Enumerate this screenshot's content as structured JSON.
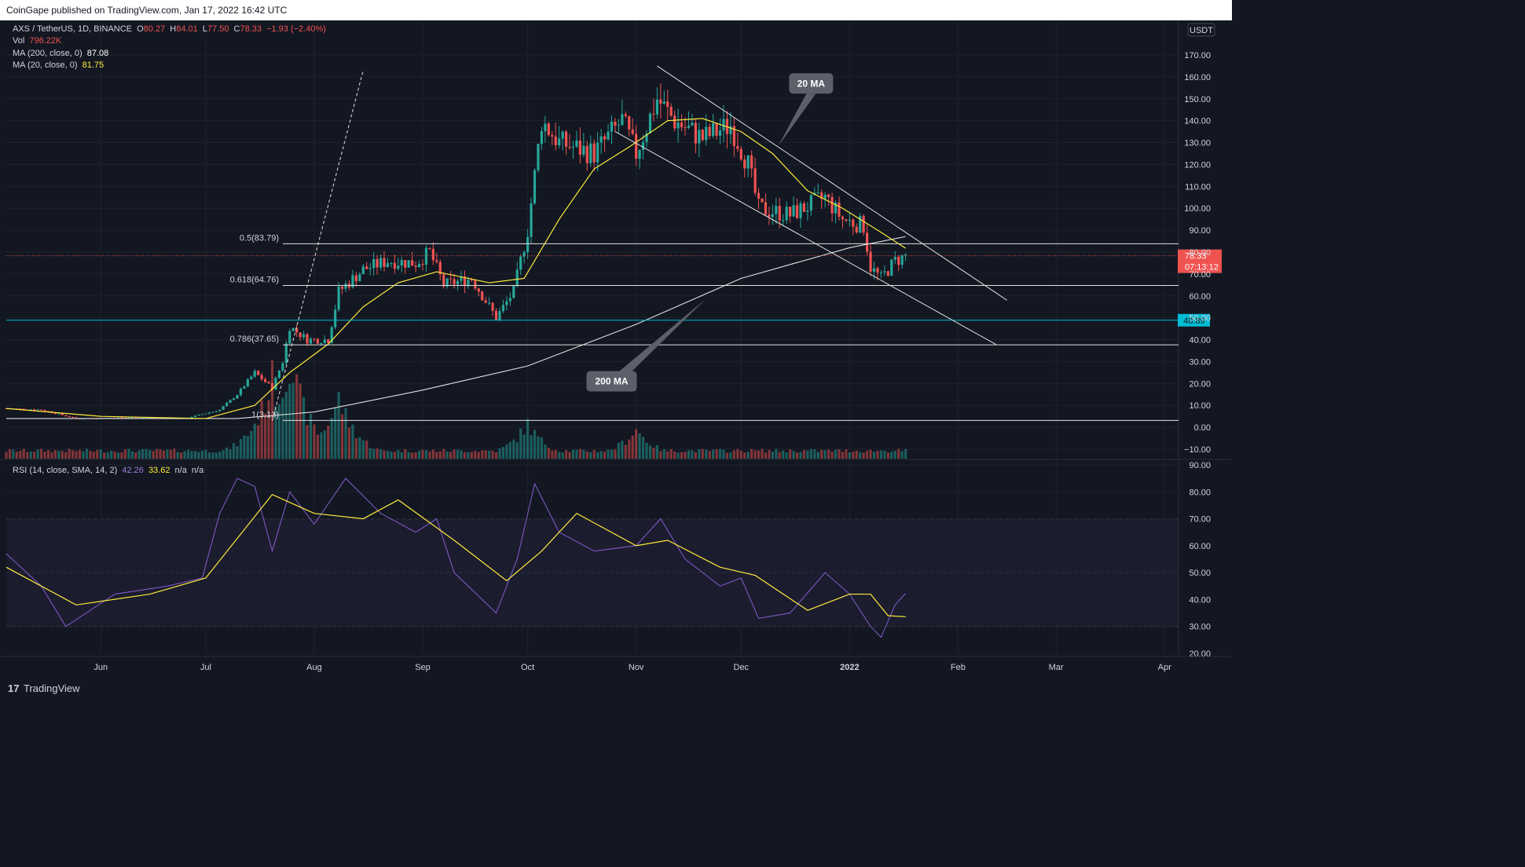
{
  "header": {
    "published": "CoinGape published on TradingView.com, Jan 17, 2022 16:42 UTC"
  },
  "legend": {
    "symbol": "AXS / TetherUS, 1D, BINANCE",
    "open_label": "O",
    "open": "80.27",
    "high_label": "H",
    "high": "84.01",
    "low_label": "L",
    "low": "77.50",
    "close_label": "C",
    "close": "78.33",
    "change": "−1.93 (−2.40%)",
    "vol_label": "Vol",
    "vol": "796.22K",
    "ma200_label": "MA (200, close, 0)",
    "ma200": "87.08",
    "ma20_label": "MA (20, close, 0)",
    "ma20": "81.75"
  },
  "rsi_legend": {
    "label": "RSI (14, close, SMA, 14, 2)",
    "rsi": "42.26",
    "sma": "33.62",
    "na1": "n/a",
    "na2": "n/a"
  },
  "footer": {
    "logo": "17",
    "brand": "TradingView"
  },
  "colors": {
    "bg": "#131722",
    "up": "#26a69a",
    "down": "#ef5350",
    "ma20": "#ffeb3b",
    "ma200": "#e0e0e0",
    "rsi": "#7e57c2",
    "level": "#00bcd4"
  },
  "chart_data": [
    {
      "type": "candlestick",
      "currency_label": "USDT",
      "y_ticks": [
        "170.00",
        "160.00",
        "150.00",
        "140.00",
        "130.00",
        "120.00",
        "110.00",
        "100.00",
        "90.00",
        "80.00",
        "70.00",
        "60.00",
        "50.00",
        "40.00",
        "30.00",
        "20.00",
        "10.00",
        "0.00",
        "−10.00"
      ],
      "y_tick_values": [
        170,
        160,
        150,
        140,
        130,
        120,
        110,
        100,
        90,
        80,
        70,
        60,
        50,
        40,
        30,
        20,
        10,
        0,
        -10
      ],
      "y_range": [
        -12,
        180
      ],
      "x_labels": [
        "Jun",
        "Jul",
        "Aug",
        "Sep",
        "Oct",
        "Nov",
        "Dec",
        "2022",
        "Feb",
        "Mar",
        "Apr"
      ],
      "x_dates": [
        "2021-06-01",
        "2021-07-01",
        "2021-08-01",
        "2021-09-01",
        "2021-10-01",
        "2021-11-01",
        "2021-12-01",
        "2022-01-01",
        "2022-02-01",
        "2022-03-01",
        "2022-04-01"
      ],
      "x_range": [
        "2021-05-05",
        "2022-04-05"
      ],
      "price_series": [
        {
          "date": "2021-05-05",
          "close": 8.6
        },
        {
          "date": "2021-05-15",
          "close": 8
        },
        {
          "date": "2021-05-25",
          "close": 4
        },
        {
          "date": "2021-06-10",
          "close": 4.5
        },
        {
          "date": "2021-06-25",
          "close": 4
        },
        {
          "date": "2021-07-05",
          "close": 8
        },
        {
          "date": "2021-07-10",
          "close": 15
        },
        {
          "date": "2021-07-15",
          "close": 25
        },
        {
          "date": "2021-07-20",
          "close": 18
        },
        {
          "date": "2021-07-23",
          "close": 30
        },
        {
          "date": "2021-07-25",
          "close": 46
        },
        {
          "date": "2021-07-30",
          "close": 40
        },
        {
          "date": "2021-08-05",
          "close": 40
        },
        {
          "date": "2021-08-08",
          "close": 62
        },
        {
          "date": "2021-08-15",
          "close": 72
        },
        {
          "date": "2021-08-22",
          "close": 76
        },
        {
          "date": "2021-08-30",
          "close": 75
        },
        {
          "date": "2021-09-03",
          "close": 80
        },
        {
          "date": "2021-09-07",
          "close": 65
        },
        {
          "date": "2021-09-15",
          "close": 68
        },
        {
          "date": "2021-09-22",
          "close": 50
        },
        {
          "date": "2021-09-27",
          "close": 62
        },
        {
          "date": "2021-10-01",
          "close": 90
        },
        {
          "date": "2021-10-05",
          "close": 140
        },
        {
          "date": "2021-10-10",
          "close": 130
        },
        {
          "date": "2021-10-20",
          "close": 125
        },
        {
          "date": "2021-10-28",
          "close": 140
        },
        {
          "date": "2021-11-01",
          "close": 125
        },
        {
          "date": "2021-11-07",
          "close": 150
        },
        {
          "date": "2021-11-12",
          "close": 140
        },
        {
          "date": "2021-11-20",
          "close": 132
        },
        {
          "date": "2021-11-28",
          "close": 138
        },
        {
          "date": "2021-12-03",
          "close": 120
        },
        {
          "date": "2021-12-06",
          "close": 100
        },
        {
          "date": "2021-12-15",
          "close": 97
        },
        {
          "date": "2021-12-25",
          "close": 105
        },
        {
          "date": "2021-12-30",
          "close": 95
        },
        {
          "date": "2022-01-05",
          "close": 92
        },
        {
          "date": "2022-01-07",
          "close": 73
        },
        {
          "date": "2022-01-10",
          "close": 68
        },
        {
          "date": "2022-01-14",
          "close": 76
        },
        {
          "date": "2022-01-17",
          "close": 78.33
        }
      ],
      "ma20": [
        {
          "date": "2021-05-05",
          "value": 8.6
        },
        {
          "date": "2021-06-01",
          "value": 5
        },
        {
          "date": "2021-07-01",
          "value": 4
        },
        {
          "date": "2021-07-15",
          "value": 10
        },
        {
          "date": "2021-07-25",
          "value": 25
        },
        {
          "date": "2021-08-05",
          "value": 38
        },
        {
          "date": "2021-08-15",
          "value": 55
        },
        {
          "date": "2021-08-25",
          "value": 66
        },
        {
          "date": "2021-09-05",
          "value": 71
        },
        {
          "date": "2021-09-20",
          "value": 66
        },
        {
          "date": "2021-09-30",
          "value": 68
        },
        {
          "date": "2021-10-10",
          "value": 95
        },
        {
          "date": "2021-10-20",
          "value": 118
        },
        {
          "date": "2021-10-30",
          "value": 128
        },
        {
          "date": "2021-11-10",
          "value": 140
        },
        {
          "date": "2021-11-20",
          "value": 141
        },
        {
          "date": "2021-12-01",
          "value": 135
        },
        {
          "date": "2021-12-10",
          "value": 125
        },
        {
          "date": "2021-12-20",
          "value": 108
        },
        {
          "date": "2021-12-30",
          "value": 100
        },
        {
          "date": "2022-01-10",
          "value": 89
        },
        {
          "date": "2022-01-17",
          "value": 81.75
        }
      ],
      "ma200": [
        {
          "date": "2021-05-05",
          "value": 4
        },
        {
          "date": "2021-07-10",
          "value": 4
        },
        {
          "date": "2021-08-01",
          "value": 7
        },
        {
          "date": "2021-09-01",
          "value": 17
        },
        {
          "date": "2021-10-01",
          "value": 28
        },
        {
          "date": "2021-11-01",
          "value": 47
        },
        {
          "date": "2021-12-01",
          "value": 68
        },
        {
          "date": "2022-01-01",
          "value": 82
        },
        {
          "date": "2022-01-17",
          "value": 87.08
        }
      ],
      "fib_levels": [
        {
          "label": "0.5(83.79)",
          "value": 83.79
        },
        {
          "label": "0.618(64.76)",
          "value": 64.76
        },
        {
          "label": "0.786(37.65)",
          "value": 37.65
        },
        {
          "label": "1(3.13)",
          "value": 3.13
        }
      ],
      "horizontal_level": {
        "label": "48.89",
        "value": 48.89
      },
      "current_price": {
        "label": "78.33",
        "countdown": "07:13:12",
        "value": 78.33
      },
      "trendlines": [
        {
          "name": "channel-top",
          "from": {
            "date": "2021-11-07",
            "value": 165
          },
          "to": {
            "date": "2022-02-15",
            "value": 58
          }
        },
        {
          "name": "channel-bottom",
          "from": {
            "date": "2021-10-26",
            "value": 135
          },
          "to": {
            "date": "2022-02-12",
            "value": 37.65
          }
        },
        {
          "name": "dashed-trend",
          "from": {
            "date": "2021-07-20",
            "value": 3
          },
          "to": {
            "date": "2021-08-15",
            "value": 163
          },
          "dashed": true
        }
      ],
      "annotations": [
        {
          "text": "20 MA",
          "date": "2021-12-21",
          "value": 157
        },
        {
          "text": "200 MA",
          "date": "2021-10-25",
          "value": 21
        }
      ],
      "volume": [
        {
          "date": "2021-07-20",
          "value": 0.8
        },
        {
          "date": "2021-07-25",
          "value": 1
        },
        {
          "date": "2021-08-08",
          "value": 0.6
        },
        {
          "date": "2021-10-01",
          "value": 0.35
        },
        {
          "date": "2021-11-01",
          "value": 0.3
        },
        {
          "date": "2022-01-17",
          "value": 0.05
        }
      ]
    },
    {
      "type": "line",
      "name": "RSI",
      "y_ticks": [
        "90.00",
        "80.00",
        "70.00",
        "60.00",
        "50.00",
        "40.00",
        "30.00",
        "20.00"
      ],
      "y_tick_values": [
        90,
        80,
        70,
        60,
        50,
        40,
        30,
        20
      ],
      "y_range": [
        18,
        92
      ],
      "bands": [
        70,
        50,
        30
      ],
      "rsi": [
        {
          "date": "2021-05-05",
          "value": 57
        },
        {
          "date": "2021-05-15",
          "value": 45
        },
        {
          "date": "2021-05-22",
          "value": 30
        },
        {
          "date": "2021-06-05",
          "value": 42
        },
        {
          "date": "2021-06-20",
          "value": 45
        },
        {
          "date": "2021-06-30",
          "value": 48
        },
        {
          "date": "2021-07-05",
          "value": 72
        },
        {
          "date": "2021-07-10",
          "value": 85
        },
        {
          "date": "2021-07-15",
          "value": 82
        },
        {
          "date": "2021-07-20",
          "value": 58
        },
        {
          "date": "2021-07-25",
          "value": 80
        },
        {
          "date": "2021-08-01",
          "value": 68
        },
        {
          "date": "2021-08-10",
          "value": 85
        },
        {
          "date": "2021-08-20",
          "value": 72
        },
        {
          "date": "2021-08-30",
          "value": 65
        },
        {
          "date": "2021-09-05",
          "value": 70
        },
        {
          "date": "2021-09-10",
          "value": 50
        },
        {
          "date": "2021-09-22",
          "value": 35
        },
        {
          "date": "2021-09-28",
          "value": 55
        },
        {
          "date": "2021-10-03",
          "value": 83
        },
        {
          "date": "2021-10-10",
          "value": 65
        },
        {
          "date": "2021-10-20",
          "value": 58
        },
        {
          "date": "2021-11-01",
          "value": 60
        },
        {
          "date": "2021-11-08",
          "value": 70
        },
        {
          "date": "2021-11-15",
          "value": 55
        },
        {
          "date": "2021-11-25",
          "value": 45
        },
        {
          "date": "2021-12-01",
          "value": 48
        },
        {
          "date": "2021-12-06",
          "value": 33
        },
        {
          "date": "2021-12-15",
          "value": 35
        },
        {
          "date": "2021-12-25",
          "value": 50
        },
        {
          "date": "2022-01-01",
          "value": 42
        },
        {
          "date": "2022-01-07",
          "value": 30
        },
        {
          "date": "2022-01-10",
          "value": 26
        },
        {
          "date": "2022-01-14",
          "value": 38
        },
        {
          "date": "2022-01-17",
          "value": 42.26
        }
      ],
      "sma": [
        {
          "date": "2021-05-05",
          "value": 52
        },
        {
          "date": "2021-05-25",
          "value": 38
        },
        {
          "date": "2021-06-15",
          "value": 42
        },
        {
          "date": "2021-07-01",
          "value": 48
        },
        {
          "date": "2021-07-20",
          "value": 79
        },
        {
          "date": "2021-08-01",
          "value": 72
        },
        {
          "date": "2021-08-15",
          "value": 70
        },
        {
          "date": "2021-08-25",
          "value": 77
        },
        {
          "date": "2021-09-10",
          "value": 62
        },
        {
          "date": "2021-09-25",
          "value": 47
        },
        {
          "date": "2021-10-05",
          "value": 58
        },
        {
          "date": "2021-10-15",
          "value": 72
        },
        {
          "date": "2021-11-01",
          "value": 60
        },
        {
          "date": "2021-11-10",
          "value": 62
        },
        {
          "date": "2021-11-25",
          "value": 52
        },
        {
          "date": "2021-12-05",
          "value": 49
        },
        {
          "date": "2021-12-20",
          "value": 36
        },
        {
          "date": "2022-01-01",
          "value": 42
        },
        {
          "date": "2022-01-07",
          "value": 42
        },
        {
          "date": "2022-01-12",
          "value": 34
        },
        {
          "date": "2022-01-17",
          "value": 33.62
        }
      ]
    }
  ]
}
